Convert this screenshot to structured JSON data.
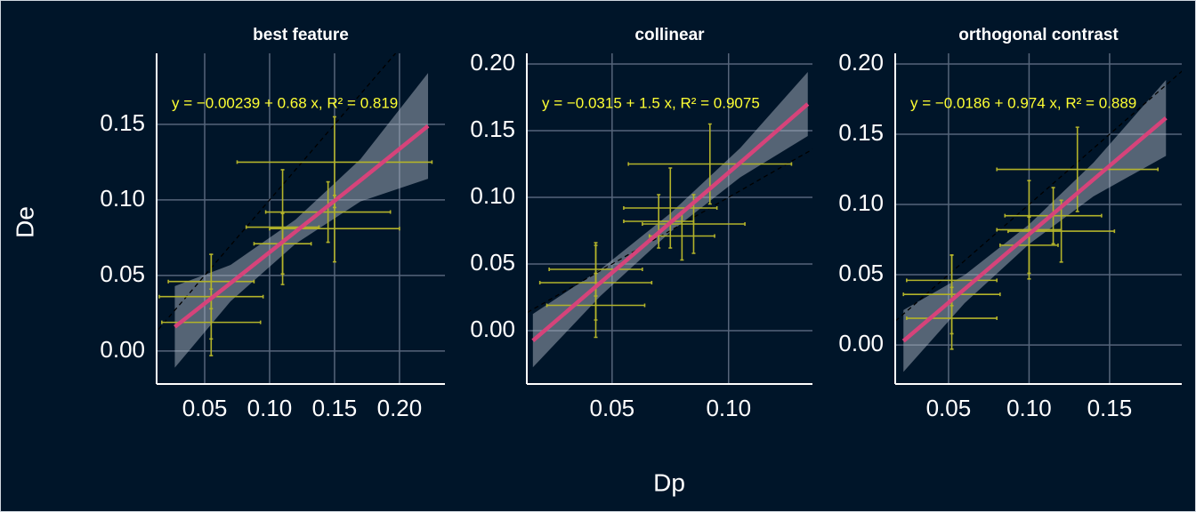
{
  "xlabel": "Dp",
  "ylabel": "De",
  "chart_data": [
    {
      "type": "scatter",
      "title": "best feature",
      "xlim": [
        0.013,
        0.235
      ],
      "ylim": [
        -0.0218,
        0.197
      ],
      "xticks": [
        0.05,
        {
          "value": 0.1,
          "label": "0.10"
        },
        0.15,
        {
          "value": 0.2,
          "label": "0.20"
        }
      ],
      "yticks": [
        {
          "value": 0,
          "label": "0.00"
        },
        0.05,
        {
          "value": 0.1,
          "label": "0.10"
        },
        0.15
      ],
      "grid": true,
      "identity_line": true,
      "x": [
        0.055,
        0.055,
        0.055,
        0.11,
        0.11,
        0.145,
        0.15,
        0.15
      ],
      "y": [
        0.046,
        0.036,
        0.019,
        0.071,
        0.082,
        0.092,
        0.081,
        0.125
      ],
      "xerr": [
        0.033,
        0.04,
        0.038,
        0.022,
        0.028,
        0.048,
        0.05,
        0.075
      ],
      "yerr": [
        0.018,
        0.028,
        0.022,
        0.02,
        0.038,
        0.02,
        0.022,
        0.03
      ],
      "color": "#b3b32a",
      "fit": {
        "x": [
          0.027,
          0.07,
          0.12,
          0.17,
          0.222
        ],
        "values": [
          0.016,
          0.045,
          0.079,
          0.113,
          0.149
        ],
        "lower": [
          -0.011,
          0.033,
          0.071,
          0.099,
          0.114
        ],
        "upper": [
          0.043,
          0.057,
          0.087,
          0.127,
          0.184
        ],
        "color": "#d6437a",
        "band_color": "#aab3c2"
      },
      "annotation": "y = −0.00239 + 0.68 x, R² = 0.819"
    },
    {
      "type": "scatter",
      "title": "collinear",
      "xlim": [
        0.0134,
        0.136
      ],
      "ylim": [
        -0.04,
        0.208
      ],
      "xticks": [
        0.05,
        {
          "value": 0.1,
          "label": "0.10"
        }
      ],
      "yticks": [
        {
          "value": 0,
          "label": "0.00"
        },
        0.05,
        {
          "value": 0.1,
          "label": "0.10"
        },
        0.15,
        {
          "value": 0.2,
          "label": "0.20"
        }
      ],
      "grid": true,
      "identity_line": true,
      "x": [
        0.043,
        0.043,
        0.043,
        0.07,
        0.075,
        0.08,
        0.085,
        0.092
      ],
      "y": [
        0.046,
        0.036,
        0.019,
        0.082,
        0.092,
        0.071,
        0.08,
        0.125
      ],
      "xerr": [
        0.02,
        0.024,
        0.021,
        0.015,
        0.02,
        0.014,
        0.022,
        0.035
      ],
      "yerr": [
        0.02,
        0.028,
        0.024,
        0.02,
        0.03,
        0.018,
        0.022,
        0.03
      ],
      "color": "#b3b32a",
      "fit": {
        "x": [
          0.016,
          0.045,
          0.075,
          0.105,
          0.134
        ],
        "values": [
          -0.0075,
          0.036,
          0.081,
          0.126,
          0.17
        ],
        "lower": [
          -0.0275,
          0.026,
          0.074,
          0.115,
          0.146
        ],
        "upper": [
          0.0125,
          0.046,
          0.088,
          0.137,
          0.194
        ],
        "color": "#d6437a",
        "band_color": "#aab3c2"
      },
      "annotation": "y = −0.0315 + 1.5 x, R² = 0.9075"
    },
    {
      "type": "scatter",
      "title": "orthogonal contrast",
      "xlim": [
        0.0169,
        0.1948
      ],
      "ylim": [
        -0.0278,
        0.2076
      ],
      "xticks": [
        0.05,
        {
          "value": 0.1,
          "label": "0.10"
        },
        0.15
      ],
      "yticks": [
        {
          "value": 0,
          "label": "0.00"
        },
        0.05,
        {
          "value": 0.1,
          "label": "0.10"
        },
        0.15,
        {
          "value": 0.2,
          "label": "0.20"
        }
      ],
      "grid": true,
      "identity_line": true,
      "x": [
        0.052,
        0.052,
        0.052,
        0.1,
        0.1,
        0.115,
        0.12,
        0.13
      ],
      "y": [
        0.046,
        0.036,
        0.019,
        0.071,
        0.082,
        0.092,
        0.081,
        0.125
      ],
      "xerr": [
        0.028,
        0.03,
        0.028,
        0.018,
        0.02,
        0.03,
        0.033,
        0.05
      ],
      "yerr": [
        0.018,
        0.028,
        0.022,
        0.02,
        0.035,
        0.02,
        0.022,
        0.03
      ],
      "color": "#b3b32a",
      "fit": {
        "x": [
          0.022,
          0.06,
          0.1,
          0.14,
          0.185
        ],
        "values": [
          0.0028,
          0.0398,
          0.0788,
          0.1178,
          0.1616
        ],
        "lower": [
          -0.0192,
          0.0298,
          0.0718,
          0.1058,
          0.1346
        ],
        "upper": [
          0.0248,
          0.0498,
          0.0858,
          0.1298,
          0.1886
        ],
        "color": "#d6437a",
        "band_color": "#aab3c2"
      },
      "annotation": "y = −0.0186 + 0.974 x, R² = 0.889"
    }
  ]
}
